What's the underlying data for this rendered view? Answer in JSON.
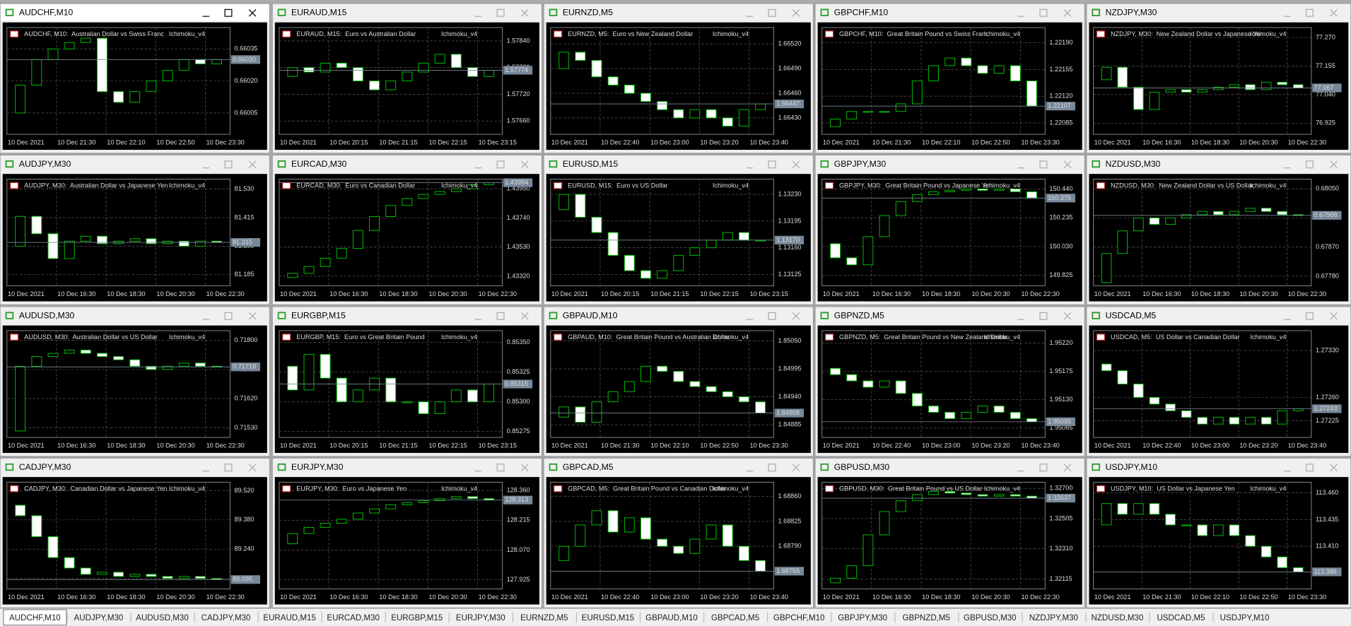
{
  "windows": [
    {
      "title": "AUDCHF,M10",
      "header": "AUDCHF, M10:  Australian Dollar vs Swiss Franc",
      "indicator": "Ichimoku_v4",
      "ylim": [
        0.65995,
        0.66045
      ],
      "yticks": [
        0.66035,
        {
          "value": 0.6602,
          "label": "0.66020"
        },
        0.66005
      ],
      "price": {
        "value": 0.6603,
        "label": "0.66030"
      },
      "xlabels": [
        "10 Dec 2021",
        "10 Dec 21:30",
        "10 Dec 22:10",
        "10 Dec 22:50",
        "10 Dec 23:30"
      ],
      "closes": [
        0.66005,
        0.66018,
        0.6603,
        0.66035,
        0.66038,
        0.6604,
        0.66015,
        0.6601,
        0.66015,
        0.6602,
        0.66025,
        0.6603,
        0.66028,
        0.6603
      ]
    },
    {
      "title": "EURAUD,M15",
      "header": "EURAUD, M15:  Euro vs Australian Dollar",
      "indicator": "Ichimoku_v4",
      "ylim": [
        1.5763,
        1.5787
      ],
      "yticks": [
        {
          "value": 1.5784,
          "label": "1.57840"
        },
        {
          "value": 1.5778,
          "label": "1.57780"
        },
        {
          "value": 1.5772,
          "label": "1.57720"
        },
        {
          "value": 1.5766,
          "label": "1.57660"
        }
      ],
      "price": 1.57774,
      "xlabels": [
        "10 Dec 2021",
        "10 Dec 20:15",
        "10 Dec 21:15",
        "10 Dec 22:15",
        "10 Dec 23:15"
      ],
      "closes": [
        1.5776,
        1.5778,
        1.5777,
        1.5779,
        1.5778,
        1.5775,
        1.5773,
        1.5775,
        1.5777,
        1.5779,
        1.5781,
        1.5778,
        1.5776,
        1.57774
      ]
    },
    {
      "title": "EURNZD,M5",
      "header": "EURNZD, M5:  Euro vs New Zealand Dollar",
      "indicator": "Ichimoku_v4",
      "ylim": [
        1.6641,
        1.6654
      ],
      "yticks": [
        {
          "value": 1.6652,
          "label": "1.66520"
        },
        {
          "value": 1.6649,
          "label": "1.66490"
        },
        {
          "value": 1.6646,
          "label": "1.66460"
        },
        {
          "value": 1.6643,
          "label": "1.66430"
        }
      ],
      "price": 1.66447,
      "xlabels": [
        "10 Dec 2021",
        "10 Dec 22:40",
        "10 Dec 23:00",
        "10 Dec 23:20",
        "10 Dec 23:40"
      ],
      "closes": [
        1.6649,
        1.6651,
        1.665,
        1.6648,
        1.6647,
        1.6646,
        1.6645,
        1.6644,
        1.6643,
        1.6644,
        1.6643,
        1.6642,
        1.6644,
        1.66447
      ]
    },
    {
      "title": "GBPCHF,M10",
      "header": "GBPCHF, M10:  Great Britain Pound vs Swiss Franc",
      "indicator": "Ichimoku_v4",
      "ylim": [
        1.2207,
        1.2221
      ],
      "yticks": [
        {
          "value": 1.2219,
          "label": "1.22190"
        },
        1.22155,
        {
          "value": 1.2212,
          "label": "1.22120"
        },
        1.22085
      ],
      "price": 1.22107,
      "xlabels": [
        "10 Dec 2021",
        "10 Dec 21:30",
        "10 Dec 22:10",
        "10 Dec 22:50",
        "10 Dec 23:30"
      ],
      "closes": [
        1.2208,
        1.2209,
        1.221,
        1.221,
        1.221,
        1.2211,
        1.2214,
        1.2216,
        1.2217,
        1.2216,
        1.2215,
        1.2216,
        1.2214,
        1.22107
      ]
    },
    {
      "title": "NZDJPY,M30",
      "header": "NZDJPY, M30:  New Zealand Dollar vs Japanese Yen",
      "indicator": "Ichimoku_v4",
      "ylim": [
        76.88,
        77.31
      ],
      "yticks": [
        {
          "value": 77.27,
          "label": "77.270"
        },
        77.155,
        {
          "value": 77.04,
          "label": "77.040"
        },
        76.925
      ],
      "price": 77.067,
      "xlabels": [
        "10 Dec 2021",
        "10 Dec 16:30",
        "10 Dec 18:30",
        "10 Dec 20:30",
        "10 Dec 22:30"
      ],
      "closes": [
        77.1,
        77.15,
        77.07,
        76.98,
        77.05,
        77.06,
        77.05,
        77.06,
        77.07,
        77.08,
        77.06,
        77.09,
        77.08,
        77.067
      ]
    },
    {
      "title": "AUDJPY,M30",
      "header": "AUDJPY, M30:  Australian Dollar vs Japanese Yen",
      "indicator": "Ichimoku_v4",
      "ylim": [
        81.14,
        81.57
      ],
      "yticks": [
        {
          "value": 81.53,
          "label": "81.530"
        },
        81.415,
        {
          "value": 81.3,
          "label": "81.300"
        },
        81.185
      ],
      "price": 81.315,
      "xlabels": [
        "10 Dec 2021",
        "10 Dec 16:30",
        "10 Dec 18:30",
        "10 Dec 20:30",
        "10 Dec 22:30"
      ],
      "closes": [
        81.3,
        81.42,
        81.35,
        81.25,
        81.32,
        81.34,
        81.31,
        81.32,
        81.33,
        81.31,
        81.32,
        81.3,
        81.32,
        81.315
      ]
    },
    {
      "title": "EURCAD,M30",
      "header": "EURCAD, M30:  Euro vs Canadian Dollar",
      "indicator": "Ichimoku_v4",
      "ylim": [
        1.4325,
        1.4402
      ],
      "yticks": [
        {
          "value": 1.4395,
          "label": "1.43950"
        },
        {
          "value": 1.4374,
          "label": "1.43740"
        },
        {
          "value": 1.4353,
          "label": "1.43530"
        },
        {
          "value": 1.4332,
          "label": "1.43320"
        }
      ],
      "price": 1.43994,
      "xlabels": [
        "10 Dec 2021",
        "10 Dec 16:30",
        "10 Dec 18:30",
        "10 Dec 20:30",
        "10 Dec 22:30"
      ],
      "closes": [
        1.4331,
        1.4334,
        1.4339,
        1.4345,
        1.4352,
        1.4365,
        1.4375,
        1.4383,
        1.4388,
        1.4391,
        1.4393,
        1.4395,
        1.4398,
        1.43994
      ]
    },
    {
      "title": "EURUSD,M15",
      "header": "EURUSD, M15:  Euro vs US Dollar",
      "indicator": "Ichimoku_v4",
      "ylim": [
        1.1311,
        1.1325
      ],
      "yticks": [
        {
          "value": 1.1323,
          "label": "1.13230"
        },
        1.13195,
        {
          "value": 1.1316,
          "label": "1.13160"
        },
        1.13125
      ],
      "price": {
        "value": 1.1317,
        "label": "1.13170"
      },
      "xlabels": [
        "10 Dec 2021",
        "10 Dec 20:15",
        "10 Dec 21:15",
        "10 Dec 22:15",
        "10 Dec 23:15"
      ],
      "closes": [
        1.1321,
        1.1323,
        1.132,
        1.1318,
        1.1315,
        1.1313,
        1.1312,
        1.1313,
        1.1315,
        1.1316,
        1.1317,
        1.1318,
        1.1317,
        1.1317
      ]
    },
    {
      "title": "GBPJPY,M30",
      "header": "GBPJPY, M30:  Great Britain Pound vs Japanese Yen",
      "indicator": "Ichimoku_v4",
      "ylim": [
        149.75,
        150.51
      ],
      "yticks": [
        {
          "value": 150.44,
          "label": "150.440"
        },
        150.235,
        {
          "value": 150.03,
          "label": "150.030"
        },
        149.825
      ],
      "price": 150.375,
      "xlabels": [
        "10 Dec 2021",
        "10 Dec 16:30",
        "10 Dec 18:30",
        "10 Dec 20:30",
        "10 Dec 22:30"
      ],
      "closes": [
        150.05,
        149.95,
        149.9,
        150.1,
        150.25,
        150.35,
        150.4,
        150.42,
        150.43,
        150.44,
        150.43,
        150.44,
        150.42,
        150.375
      ]
    },
    {
      "title": "NZDUSD,M30",
      "header": "NZDUSD, M30:  New Zealand Dollar vs US Dollar",
      "indicator": "Ichimoku_v4",
      "ylim": [
        0.6775,
        0.6808
      ],
      "yticks": [
        {
          "value": 0.6805,
          "label": "0.68050"
        },
        {
          "value": 0.6796,
          "label": "0.67960"
        },
        {
          "value": 0.6787,
          "label": "0.67870"
        },
        {
          "value": 0.6778,
          "label": "0.67780"
        }
      ],
      "price": 0.67968,
      "xlabels": [
        "10 Dec 2021",
        "10 Dec 16:30",
        "10 Dec 18:30",
        "10 Dec 20:30",
        "10 Dec 22:30"
      ],
      "closes": [
        0.6776,
        0.6785,
        0.6792,
        0.6796,
        0.6794,
        0.6796,
        0.6797,
        0.6798,
        0.6797,
        0.6798,
        0.6799,
        0.6798,
        0.6797,
        0.67968
      ]
    },
    {
      "title": "AUDUSD,M30",
      "header": "AUDUSD, M30:  Australian Dollar vs US Dollar",
      "indicator": "Ichimoku_v4",
      "ylim": [
        0.715,
        0.7183
      ],
      "yticks": [
        {
          "value": 0.718,
          "label": "0.71800"
        },
        {
          "value": 0.7171,
          "label": "0.71710"
        },
        {
          "value": 0.7162,
          "label": "0.71620"
        },
        {
          "value": 0.7153,
          "label": "0.71530"
        }
      ],
      "price": 0.71718,
      "xlabels": [
        "10 Dec 2021",
        "10 Dec 16:30",
        "10 Dec 18:30",
        "10 Dec 20:30",
        "10 Dec 22:30"
      ],
      "closes": [
        0.7152,
        0.7172,
        0.7175,
        0.7176,
        0.7177,
        0.7176,
        0.7175,
        0.7174,
        0.7172,
        0.7171,
        0.7172,
        0.7173,
        0.7172,
        0.71718
      ]
    },
    {
      "title": "EURGBP,M15",
      "header": "EURGBP, M15:  Euro vs Great Britain Pound",
      "indicator": "Ichimoku_v4",
      "ylim": [
        0.8527,
        0.8536
      ],
      "yticks": [
        {
          "value": 0.8535,
          "label": "0.85350"
        },
        0.85325,
        {
          "value": 0.853,
          "label": "0.85300"
        },
        0.85275
      ],
      "price": 0.85315,
      "xlabels": [
        "10 Dec 2021",
        "10 Dec 20:15",
        "10 Dec 21:15",
        "10 Dec 22:15",
        "10 Dec 23:15"
      ],
      "closes": [
        0.8533,
        0.8531,
        0.8534,
        0.8532,
        0.853,
        0.8531,
        0.8532,
        0.853,
        0.853,
        0.8529,
        0.853,
        0.8531,
        0.853,
        0.85315
      ]
    },
    {
      "title": "GBPAUD,M10",
      "header": "GBPAUD, M10:  Great Britain Pound vs Australian Dollar",
      "indicator": "Ichimoku_v4",
      "ylim": [
        1.8486,
        1.8507
      ],
      "yticks": [
        {
          "value": 1.8505,
          "label": "1.85050"
        },
        1.84995,
        {
          "value": 1.8494,
          "label": "1.84940"
        },
        1.84885
      ],
      "price": 1.84908,
      "xlabels": [
        "10 Dec 2021",
        "10 Dec 21:30",
        "10 Dec 22:10",
        "10 Dec 22:50",
        "10 Dec 23:30"
      ],
      "closes": [
        1.849,
        1.8492,
        1.8489,
        1.8493,
        1.8495,
        1.8497,
        1.85,
        1.8499,
        1.8497,
        1.8496,
        1.8495,
        1.8494,
        1.8493,
        1.84908
      ]
    },
    {
      "title": "GBPNZD,M5",
      "header": "GBPNZD, M5:  Great Britain Pound vs New Zealand Dollar",
      "indicator": "Ichimoku_v4",
      "ylim": [
        1.9507,
        1.9524
      ],
      "yticks": [
        {
          "value": 1.9522,
          "label": "1.95220"
        },
        1.95175,
        {
          "value": 1.9513,
          "label": "1.95130"
        },
        1.95085
      ],
      "price": 1.95095,
      "xlabels": [
        "10 Dec 2021",
        "10 Dec 22:40",
        "10 Dec 23:00",
        "10 Dec 23:20",
        "10 Dec 23:40"
      ],
      "closes": [
        1.9518,
        1.9517,
        1.9516,
        1.9515,
        1.9516,
        1.9514,
        1.9512,
        1.9511,
        1.951,
        1.9511,
        1.9512,
        1.9511,
        1.951,
        1.95095
      ]
    },
    {
      "title": "USDCAD,M5",
      "header": "USDCAD, M5:  US Dollar vs Canadian Dollar",
      "indicator": "Ichimoku_v4",
      "ylim": [
        1.272,
        1.2736
      ],
      "yticks": [
        {
          "value": 1.2733,
          "label": "1.27330"
        },
        {
          "value": 1.2726,
          "label": "1.27260"
        },
        1.27225
      ],
      "price": 1.27243,
      "xlabels": [
        "10 Dec 2021",
        "10 Dec 22:40",
        "10 Dec 23:00",
        "10 Dec 23:20",
        "10 Dec 23:40"
      ],
      "closes": [
        1.2731,
        1.273,
        1.2728,
        1.2726,
        1.2725,
        1.2724,
        1.2723,
        1.2722,
        1.2723,
        1.2722,
        1.2723,
        1.2722,
        1.2724,
        1.27243
      ]
    },
    {
      "title": "CADJPY,M30",
      "header": "CADJPY, M30:  Canadian Dollar vs Japanese Yen",
      "indicator": "Ichimoku_v4",
      "ylim": [
        89.05,
        89.56
      ],
      "yticks": [
        {
          "value": 89.52,
          "label": "89.520"
        },
        {
          "value": 89.38,
          "label": "89.380"
        },
        {
          "value": 89.24,
          "label": "89.240"
        },
        {
          "value": 89.1,
          "label": "89.100"
        }
      ],
      "price": 89.095,
      "xlabels": [
        "10 Dec 2021",
        "10 Dec 16:30",
        "10 Dec 18:30",
        "10 Dec 20:30",
        "10 Dec 22:30"
      ],
      "closes": [
        89.45,
        89.4,
        89.3,
        89.2,
        89.15,
        89.12,
        89.13,
        89.11,
        89.12,
        89.11,
        89.1,
        89.11,
        89.1,
        89.095
      ]
    },
    {
      "title": "EURJPY,M30",
      "header": "EURJPY, M30:  Euro vs Japanese Yen",
      "indicator": "Ichimoku_v4",
      "ylim": [
        127.88,
        128.4
      ],
      "yticks": [
        {
          "value": 128.36,
          "label": "128.360"
        },
        128.215,
        {
          "value": 128.07,
          "label": "128.070"
        },
        127.925
      ],
      "price": 128.313,
      "xlabels": [
        "10 Dec 2021",
        "10 Dec 16:30",
        "10 Dec 18:30",
        "10 Dec 20:30",
        "10 Dec 22:30"
      ],
      "closes": [
        128.1,
        128.15,
        128.18,
        128.2,
        128.22,
        128.25,
        128.27,
        128.29,
        128.3,
        128.31,
        128.32,
        128.33,
        128.32,
        128.313
      ]
    },
    {
      "title": "GBPCAD,M5",
      "header": "GBPCAD, M5:  Great Britain Pound vs Canadian Dollar",
      "indicator": "Ichimoku_v4",
      "ylim": [
        1.6873,
        1.6888
      ],
      "yticks": [
        {
          "value": 1.6886,
          "label": "1.68860"
        },
        1.68825,
        {
          "value": 1.6879,
          "label": "1.68790"
        }
      ],
      "price": 1.68755,
      "xlabels": [
        "10 Dec 2021",
        "10 Dec 22:40",
        "10 Dec 23:00",
        "10 Dec 23:20",
        "10 Dec 23:40"
      ],
      "closes": [
        1.6877,
        1.6879,
        1.6882,
        1.6884,
        1.6881,
        1.6883,
        1.688,
        1.6879,
        1.6878,
        1.688,
        1.6882,
        1.6879,
        1.6877,
        1.68755
      ]
    },
    {
      "title": "GBPUSD,M30",
      "header": "GBPUSD, M30:  Great Britain Pound vs US Dollar",
      "indicator": "Ichimoku_v4",
      "ylim": [
        1.3205,
        1.3274
      ],
      "yticks": [
        {
          "value": 1.327,
          "label": "1.32700"
        },
        1.32505,
        {
          "value": 1.3231,
          "label": "1.32310"
        },
        1.32115
      ],
      "price": 1.32637,
      "xlabels": [
        "10 Dec 2021",
        "10 Dec 16:30",
        "10 Dec 18:30",
        "10 Dec 20:30",
        "10 Dec 22:30"
      ],
      "closes": [
        1.3209,
        1.3212,
        1.322,
        1.324,
        1.3255,
        1.3262,
        1.3266,
        1.3268,
        1.3267,
        1.3266,
        1.3265,
        1.3266,
        1.3265,
        1.32637
      ]
    },
    {
      "title": "USDJPY,M10",
      "header": "USDJPY, M10:  US Dollar vs Japanese Yen",
      "indicator": "Ichimoku_v4",
      "ylim": [
        113.37,
        113.47
      ],
      "yticks": [
        {
          "value": 113.46,
          "label": "113.460"
        },
        113.435,
        {
          "value": 113.41,
          "label": "113.410"
        }
      ],
      "price": 113.386,
      "xlabels": [
        "10 Dec 2021",
        "10 Dec 21:30",
        "10 Dec 22:10",
        "10 Dec 22:50",
        "10 Dec 23:30"
      ],
      "closes": [
        113.43,
        113.45,
        113.44,
        113.45,
        113.44,
        113.43,
        113.43,
        113.42,
        113.43,
        113.42,
        113.41,
        113.4,
        113.39,
        113.386
      ]
    }
  ],
  "tabs": [
    "AUDCHF,M10",
    "AUDJPY,M30",
    "AUDUSD,M30",
    "CADJPY,M30",
    "EURAUD,M15",
    "EURCAD,M30",
    "EURGBP,M15",
    "EURJPY,M30",
    "EURNZD,M5",
    "EURUSD,M15",
    "GBPAUD,M10",
    "GBPCAD,M5",
    "GBPCHF,M10",
    "GBPJPY,M30",
    "GBPNZD,M5",
    "GBPUSD,M30",
    "NZDJPY,M30",
    "NZDUSD,M30",
    "USDCAD,M5",
    "USDJPY,M10"
  ]
}
